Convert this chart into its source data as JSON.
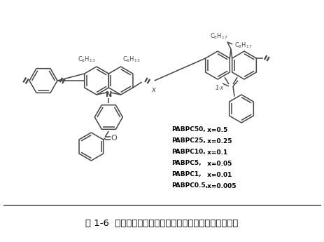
{
  "title": "图 1-6  一些典型的聚合物热活化延迟荧光材料的结构简图",
  "labels": [
    [
      "PABPC50,",
      " x=0.5"
    ],
    [
      "PABPC25,",
      " x=0.25"
    ],
    [
      "PABPC10,",
      " x=0.1"
    ],
    [
      "PABPC5,",
      " x=0.05"
    ],
    [
      "PABPC1,",
      " x=0.01"
    ],
    [
      "PABPC0.5,",
      " x=0.005"
    ]
  ],
  "bg_color": "#ffffff",
  "col": "#444444",
  "lw": 1.1
}
